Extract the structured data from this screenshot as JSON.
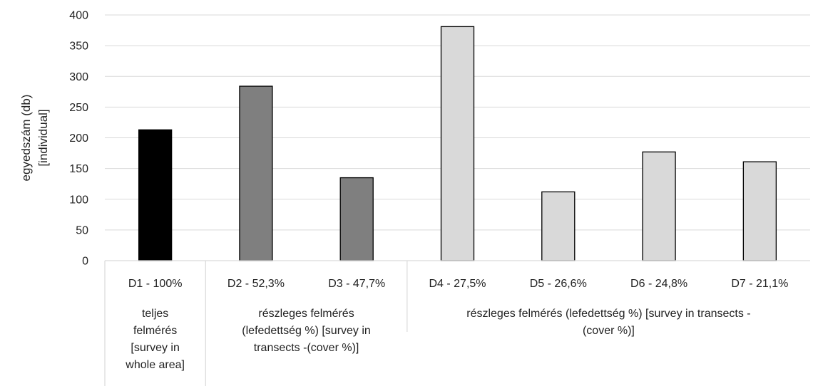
{
  "chart_data": {
    "type": "bar",
    "title": "",
    "ylabel": "egyedszám (db) [individual]",
    "ylabel_lines": [
      "egyedszám (db)",
      "[individual]"
    ],
    "ylim": [
      0,
      400
    ],
    "yticks": [
      0,
      50,
      100,
      150,
      200,
      250,
      300,
      350,
      400
    ],
    "grid": true,
    "legend": "none",
    "categories": [
      "D1 - 100%",
      "D2 - 52,3%",
      "D3 - 47,7%",
      "D4 - 27,5%",
      "D5 - 26,6%",
      "D6 - 24,8%",
      "D7 - 21,1%"
    ],
    "values": [
      213,
      284,
      135,
      381,
      112,
      177,
      161
    ],
    "bar_colors": [
      "#000000",
      "#7f7f7f",
      "#7f7f7f",
      "#d9d9d9",
      "#d9d9d9",
      "#d9d9d9",
      "#d9d9d9"
    ],
    "groups": [
      {
        "label_lines": [
          "teljes",
          "felmérés",
          "[survey in",
          "whole area]"
        ],
        "categories": 1
      },
      {
        "label_lines": [
          "részleges felmérés",
          "(lefedettség %) [survey in",
          "transects -(cover %)]"
        ],
        "categories": 2
      },
      {
        "label_lines": [
          "részleges felmérés (lefedettség %) [survey in transects -",
          "(cover %)]"
        ],
        "categories": 4
      }
    ]
  }
}
